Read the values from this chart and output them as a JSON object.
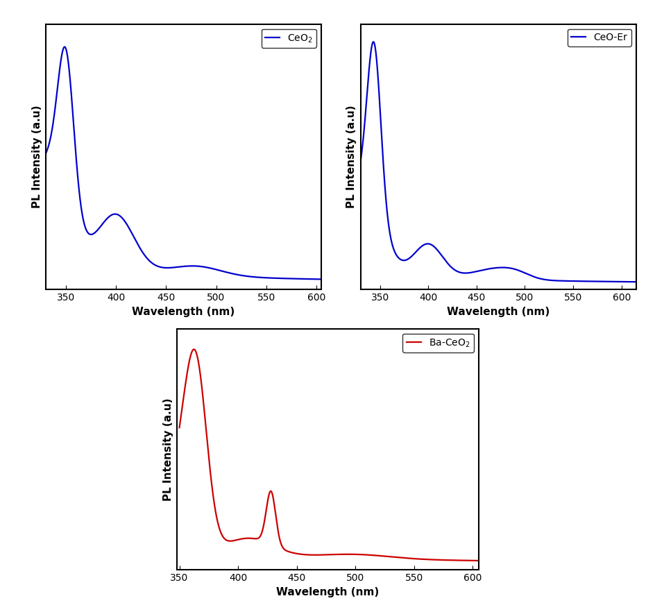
{
  "blue_color": "#0000CC",
  "red_color": "#CC0000",
  "xlabel": "Wavelength (nm)",
  "ylabel": "PL Intensity (a.u)",
  "xlim1": [
    330,
    605
  ],
  "xlim2": [
    330,
    615
  ],
  "xlim3": [
    348,
    605
  ],
  "xticks1": [
    350,
    400,
    450,
    500,
    550,
    600
  ],
  "xticks2": [
    350,
    400,
    450,
    500,
    550,
    600
  ],
  "xticks3": [
    350,
    400,
    450,
    500,
    550,
    600
  ],
  "fig_bg": "#ffffff",
  "linewidth": 1.6
}
